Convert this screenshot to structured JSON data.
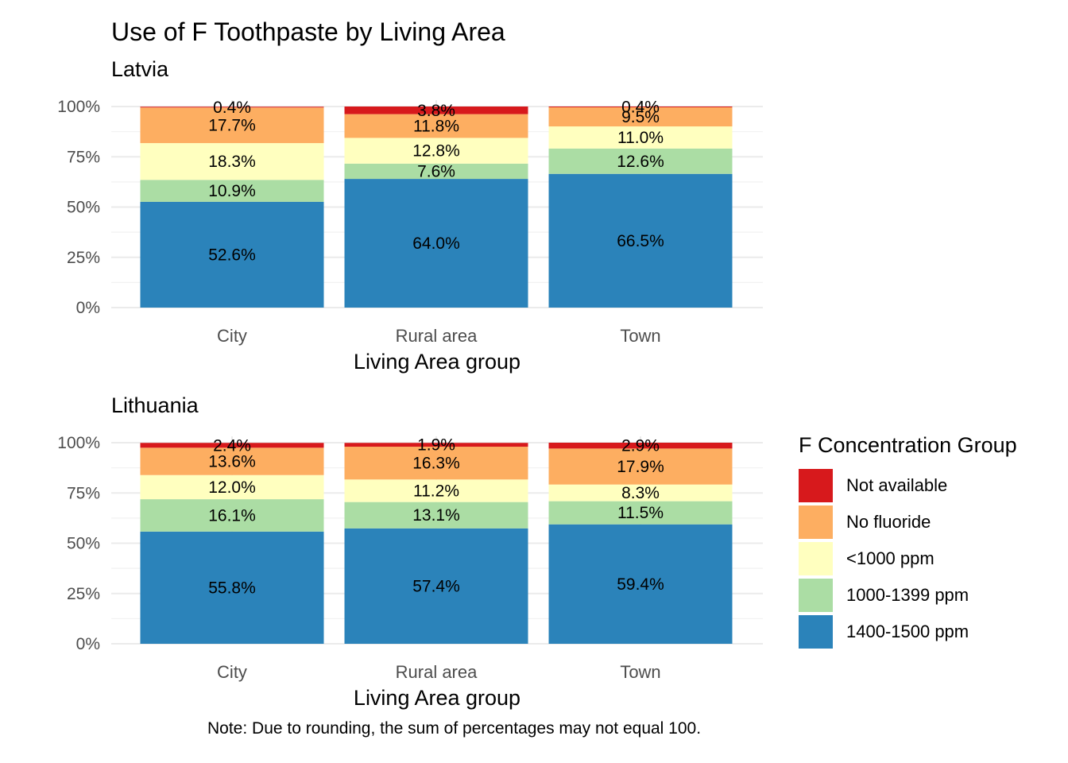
{
  "title": "Use of F Toothpaste by Living Area",
  "caption": "Note: Due to rounding, the sum of percentages may not equal 100.",
  "legend": {
    "title": "F Concentration Group",
    "items": [
      {
        "label": "Not available",
        "color": "#d7191c"
      },
      {
        "label": "No fluoride",
        "color": "#fdae61"
      },
      {
        "label": "<1000 ppm",
        "color": "#ffffbf"
      },
      {
        "label": "1000-1399 ppm",
        "color": "#abdda4"
      },
      {
        "label": "1400-1500 ppm",
        "color": "#2b83ba"
      }
    ]
  },
  "chart_data": [
    {
      "type": "bar",
      "stacked": true,
      "title": "Latvia",
      "xlabel": "Living Area group",
      "ylabel": "",
      "ylim": [
        0,
        100
      ],
      "yticks": [
        "0%",
        "25%",
        "50%",
        "75%",
        "100%"
      ],
      "categories": [
        "City",
        "Rural area",
        "Town"
      ],
      "series": [
        {
          "name": "1400-1500 ppm",
          "values": [
            52.6,
            64.0,
            66.5
          ],
          "labels": [
            "52.6%",
            "64.0%",
            "66.5%"
          ]
        },
        {
          "name": "1000-1399 ppm",
          "values": [
            10.9,
            7.6,
            12.6
          ],
          "labels": [
            "10.9%",
            "7.6%",
            "12.6%"
          ]
        },
        {
          "name": "<1000 ppm",
          "values": [
            18.3,
            12.8,
            11.0
          ],
          "labels": [
            "18.3%",
            "12.8%",
            "11.0%"
          ]
        },
        {
          "name": "No fluoride",
          "values": [
            17.7,
            11.8,
            9.5
          ],
          "labels": [
            "17.7%",
            "11.8%",
            "9.5%"
          ]
        },
        {
          "name": "Not available",
          "values": [
            0.4,
            3.8,
            0.4
          ],
          "labels": [
            "0.4%",
            "3.8%",
            "0.4%"
          ]
        }
      ],
      "grid": true,
      "legend_position": "right"
    },
    {
      "type": "bar",
      "stacked": true,
      "title": "Lithuania",
      "xlabel": "Living Area group",
      "ylabel": "",
      "ylim": [
        0,
        100
      ],
      "yticks": [
        "0%",
        "25%",
        "50%",
        "75%",
        "100%"
      ],
      "categories": [
        "City",
        "Rural area",
        "Town"
      ],
      "series": [
        {
          "name": "1400-1500 ppm",
          "values": [
            55.8,
            57.4,
            59.4
          ],
          "labels": [
            "55.8%",
            "57.4%",
            "59.4%"
          ]
        },
        {
          "name": "1000-1399 ppm",
          "values": [
            16.1,
            13.1,
            11.5
          ],
          "labels": [
            "16.1%",
            "13.1%",
            "11.5%"
          ]
        },
        {
          "name": "<1000 ppm",
          "values": [
            12.0,
            11.2,
            8.3
          ],
          "labels": [
            "12.0%",
            "11.2%",
            "8.3%"
          ]
        },
        {
          "name": "No fluoride",
          "values": [
            13.6,
            16.3,
            17.9
          ],
          "labels": [
            "13.6%",
            "16.3%",
            "17.9%"
          ]
        },
        {
          "name": "Not available",
          "values": [
            2.4,
            1.9,
            2.9
          ],
          "labels": [
            "2.4%",
            "1.9%",
            "2.9%"
          ]
        }
      ],
      "grid": true,
      "legend_position": "right"
    }
  ]
}
